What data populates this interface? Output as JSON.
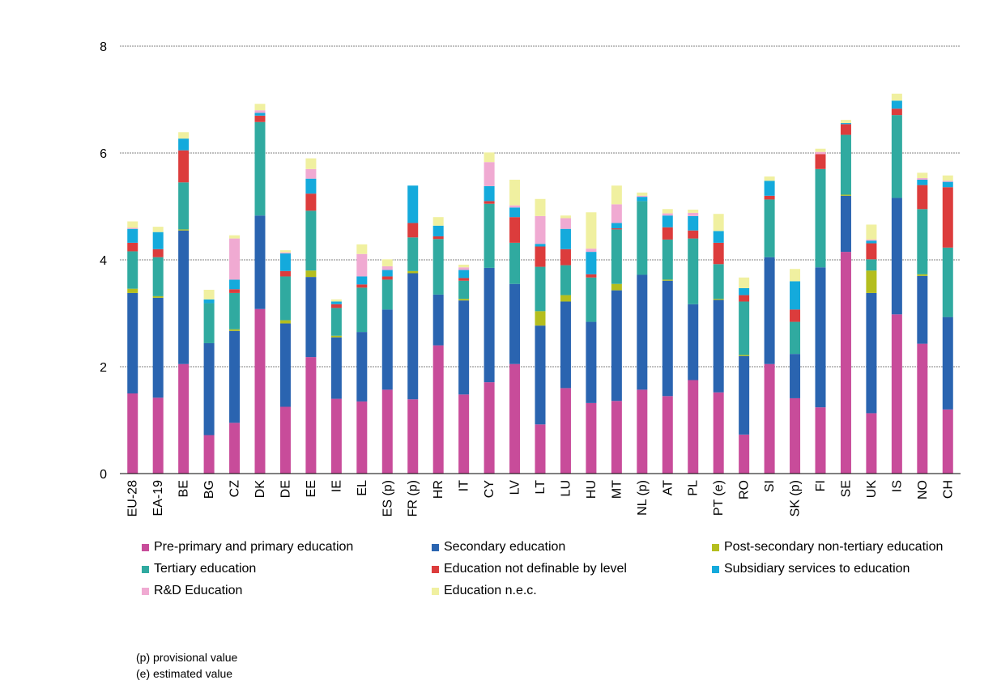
{
  "chart_data": {
    "type": "bar",
    "stacked": true,
    "title": "",
    "xlabel": "",
    "ylabel": "",
    "ylim": [
      0,
      8
    ],
    "yticks": [
      "0",
      "2",
      "4",
      "6",
      "8"
    ],
    "grid": true,
    "legend_position": "bottom",
    "categories": [
      "EU-28",
      "EA-19",
      "BE",
      "BG",
      "CZ",
      "DK",
      "DE",
      "EE",
      "IE",
      "EL",
      "ES (p)",
      "FR (p)",
      "HR",
      "IT",
      "CY",
      "LV",
      "LT",
      "LU",
      "HU",
      "MT",
      "NL (p)",
      "AT",
      "PL",
      "PT (e)",
      "RO",
      "SI",
      "SK (p)",
      "FI",
      "SE",
      "UK",
      "IS",
      "NO",
      "CH"
    ],
    "series": [
      {
        "name": "Pre-primary and primary education",
        "color": "#C84C9A",
        "values": [
          1.5,
          1.42,
          2.05,
          0.72,
          0.95,
          3.08,
          1.25,
          2.18,
          1.4,
          1.35,
          1.57,
          1.39,
          2.4,
          1.48,
          1.71,
          2.05,
          0.92,
          1.6,
          1.32,
          1.36,
          1.57,
          1.45,
          1.75,
          1.52,
          0.73,
          2.05,
          1.41,
          1.24,
          4.15,
          1.13,
          2.98,
          2.43,
          1.2
        ]
      },
      {
        "name": "Secondary education",
        "color": "#2A64B0",
        "values": [
          1.88,
          1.87,
          2.5,
          1.72,
          1.72,
          1.75,
          1.56,
          1.5,
          1.15,
          1.3,
          1.5,
          2.36,
          0.95,
          1.76,
          2.14,
          1.5,
          1.85,
          1.62,
          1.52,
          2.07,
          2.15,
          2.16,
          1.42,
          1.73,
          1.47,
          2.0,
          0.83,
          2.62,
          1.05,
          2.25,
          2.18,
          1.27,
          1.73
        ]
      },
      {
        "name": "Post-secondary non-tertiary education",
        "color": "#B4BE1E",
        "values": [
          0.08,
          0.03,
          0.02,
          0,
          0.03,
          0,
          0.06,
          0.12,
          0.03,
          0,
          0,
          0.04,
          0,
          0.03,
          0,
          0,
          0.27,
          0.12,
          0,
          0.12,
          0,
          0.02,
          0,
          0.02,
          0.02,
          0,
          0,
          0,
          0.02,
          0.42,
          0,
          0.03,
          0
        ]
      },
      {
        "name": "Tertiary education",
        "color": "#30AAA0",
        "values": [
          0.7,
          0.73,
          0.88,
          0.75,
          0.68,
          1.75,
          0.82,
          1.12,
          0.52,
          0.83,
          0.56,
          0.63,
          1.04,
          0.34,
          1.2,
          0.77,
          0.83,
          0.56,
          0.83,
          1.02,
          1.38,
          0.75,
          1.23,
          0.65,
          1.0,
          1.08,
          0.6,
          1.84,
          1.12,
          0.21,
          1.55,
          1.22,
          1.3
        ]
      },
      {
        "name": "Education not definable by level",
        "color": "#DC3C3C",
        "values": [
          0.16,
          0.15,
          0.6,
          0,
          0.07,
          0.12,
          0.1,
          0.32,
          0.07,
          0.06,
          0.06,
          0.27,
          0.05,
          0.05,
          0.05,
          0.48,
          0.38,
          0.3,
          0.06,
          0.02,
          0,
          0.23,
          0.15,
          0.4,
          0.12,
          0.07,
          0.23,
          0.28,
          0.2,
          0.3,
          0.12,
          0.45,
          1.13
        ]
      },
      {
        "name": "Subsidiary services to education",
        "color": "#14AADC",
        "values": [
          0.26,
          0.32,
          0.22,
          0.07,
          0.18,
          0.05,
          0.33,
          0.28,
          0.05,
          0.15,
          0.12,
          0.7,
          0.2,
          0.15,
          0.28,
          0.18,
          0.05,
          0.38,
          0.42,
          0.1,
          0.08,
          0.22,
          0.27,
          0.22,
          0.13,
          0.28,
          0.53,
          0,
          0.02,
          0.05,
          0.15,
          0.1,
          0.1
        ]
      },
      {
        "name": "R&D Education",
        "color": "#F0AAD2",
        "values": [
          0.02,
          0,
          0,
          0,
          0.77,
          0.05,
          0.02,
          0.18,
          0,
          0.42,
          0.07,
          0,
          0,
          0.05,
          0.45,
          0.04,
          0.52,
          0.2,
          0.06,
          0.35,
          0.02,
          0.04,
          0.06,
          0,
          0,
          0,
          0,
          0.04,
          0,
          0.02,
          0,
          0.03,
          0.02
        ]
      },
      {
        "name": "Education n.e.c.",
        "color": "#F0F0A0",
        "values": [
          0.12,
          0.1,
          0.12,
          0.18,
          0.06,
          0.12,
          0.04,
          0.2,
          0.04,
          0.18,
          0.13,
          0,
          0.16,
          0.05,
          0.18,
          0.48,
          0.32,
          0.05,
          0.68,
          0.35,
          0.06,
          0.08,
          0.06,
          0.32,
          0.2,
          0.08,
          0.23,
          0.06,
          0.06,
          0.28,
          0.13,
          0.1,
          0.1
        ]
      }
    ]
  },
  "notes": [
    "(p) provisional value",
    "(e) estimated value"
  ]
}
